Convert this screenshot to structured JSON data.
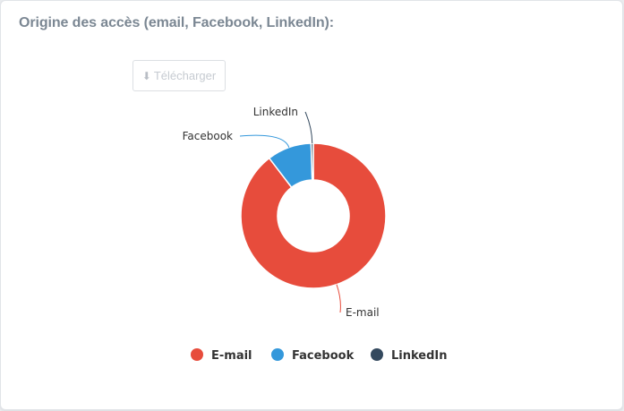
{
  "panel": {
    "title": "Origine des accès (email, Facebook, LinkedIn):",
    "download_label": "Télécharger",
    "download_icon": "download-icon"
  },
  "chart_data": {
    "type": "pie",
    "variant": "donut",
    "title": "",
    "categories": [
      "E-mail",
      "Facebook",
      "LinkedIn"
    ],
    "values": [
      89.6,
      9.9,
      0.5
    ],
    "colors": [
      "#e74c3c",
      "#3498db",
      "#34495e"
    ],
    "legend": "bottom"
  }
}
